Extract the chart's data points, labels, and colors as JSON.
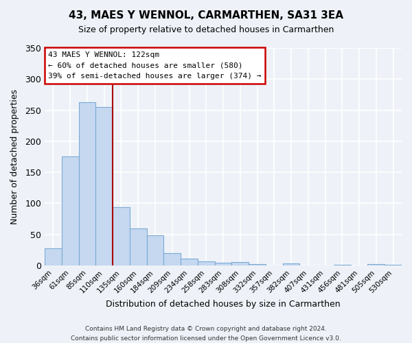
{
  "title": "43, MAES Y WENNOL, CARMARTHEN, SA31 3EA",
  "subtitle": "Size of property relative to detached houses in Carmarthen",
  "xlabel": "Distribution of detached houses by size in Carmarthen",
  "ylabel": "Number of detached properties",
  "bar_labels": [
    "36sqm",
    "61sqm",
    "85sqm",
    "110sqm",
    "135sqm",
    "160sqm",
    "184sqm",
    "209sqm",
    "234sqm",
    "258sqm",
    "283sqm",
    "308sqm",
    "332sqm",
    "357sqm",
    "382sqm",
    "407sqm",
    "431sqm",
    "456sqm",
    "481sqm",
    "505sqm",
    "530sqm"
  ],
  "bar_values": [
    28,
    175,
    263,
    255,
    94,
    60,
    48,
    20,
    11,
    7,
    4,
    5,
    2,
    0,
    3,
    0,
    0,
    1,
    0,
    2,
    1
  ],
  "bar_color": "#c5d8f0",
  "bar_edge_color": "#7baad4",
  "ylim": [
    0,
    350
  ],
  "yticks": [
    0,
    50,
    100,
    150,
    200,
    250,
    300,
    350
  ],
  "vline_x_index": 3.5,
  "vline_color": "#aa0000",
  "annotation_title": "43 MAES Y WENNOL: 122sqm",
  "annotation_line1": "← 60% of detached houses are smaller (580)",
  "annotation_line2": "39% of semi-detached houses are larger (374) →",
  "annotation_box_color": "#ffffff",
  "annotation_border_color": "#cc0000",
  "footer1": "Contains HM Land Registry data © Crown copyright and database right 2024.",
  "footer2": "Contains public sector information licensed under the Open Government Licence v3.0.",
  "background_color": "#eef2f8",
  "grid_color": "#ffffff"
}
